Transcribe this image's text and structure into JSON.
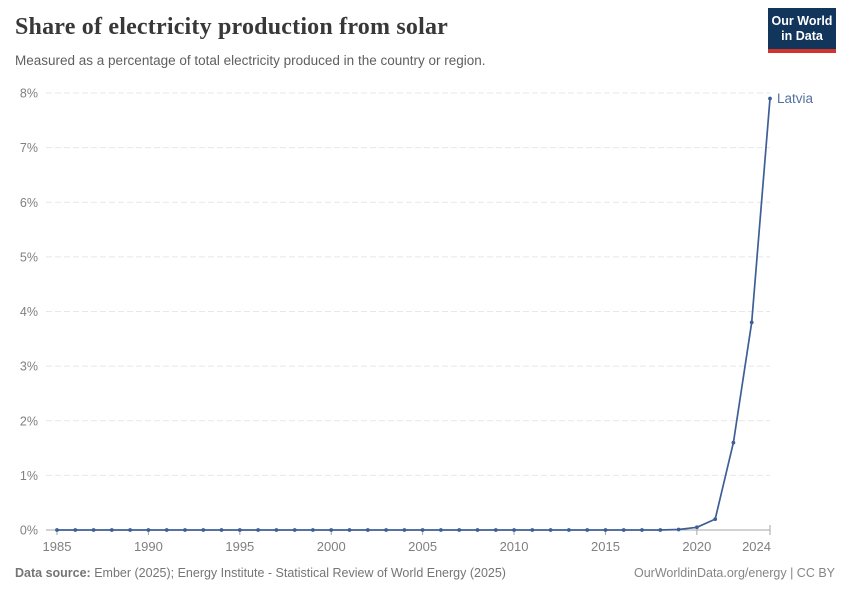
{
  "header": {
    "title": "Share of electricity production from solar",
    "subtitle": "Measured as a percentage of total electricity produced in the country or region."
  },
  "logo": {
    "line1": "Our World",
    "line2": "in Data",
    "bg_color": "#12355b",
    "stripe_color": "#d0342c"
  },
  "chart_data": {
    "type": "line",
    "title": "Share of electricity production from solar",
    "xlabel": "",
    "ylabel": "",
    "xlim": [
      1985,
      2024
    ],
    "ylim": [
      0,
      8
    ],
    "grid": "horizontal-dashed",
    "legend_position": "end-of-line-label",
    "x": [
      1985,
      1986,
      1987,
      1988,
      1989,
      1990,
      1991,
      1992,
      1993,
      1994,
      1995,
      1996,
      1997,
      1998,
      1999,
      2000,
      2001,
      2002,
      2003,
      2004,
      2005,
      2006,
      2007,
      2008,
      2009,
      2010,
      2011,
      2012,
      2013,
      2014,
      2015,
      2016,
      2017,
      2018,
      2019,
      2020,
      2021,
      2022,
      2023,
      2024
    ],
    "series": [
      {
        "name": "Latvia",
        "values": [
          0,
          0,
          0,
          0,
          0,
          0,
          0,
          0,
          0,
          0,
          0,
          0,
          0,
          0,
          0,
          0,
          0,
          0,
          0,
          0,
          0,
          0,
          0,
          0,
          0,
          0,
          0,
          0,
          0,
          0,
          0,
          0,
          0,
          0,
          0.01,
          0.05,
          0.2,
          1.6,
          3.8,
          7.9
        ]
      }
    ],
    "x_tick_labels": [
      "1985",
      "1990",
      "1995",
      "2000",
      "2005",
      "2010",
      "2015",
      "2020",
      "2024"
    ],
    "y_tick_labels": [
      "0%",
      "1%",
      "2%",
      "3%",
      "4%",
      "5%",
      "6%",
      "7%",
      "8%"
    ],
    "end_label": "Latvia",
    "colors": {
      "line": "#3d5e96",
      "point": "#3d5e96",
      "end_label": "#53719f",
      "grid": "#e7e7e7",
      "axis": "#a5a5a5",
      "tick_text": "#808080"
    }
  },
  "footer": {
    "source_label": "Data source:",
    "source_text": " Ember (2025); Energy Institute - Statistical Review of World Energy (2025)",
    "credit": "OurWorldinData.org/energy | CC BY"
  }
}
